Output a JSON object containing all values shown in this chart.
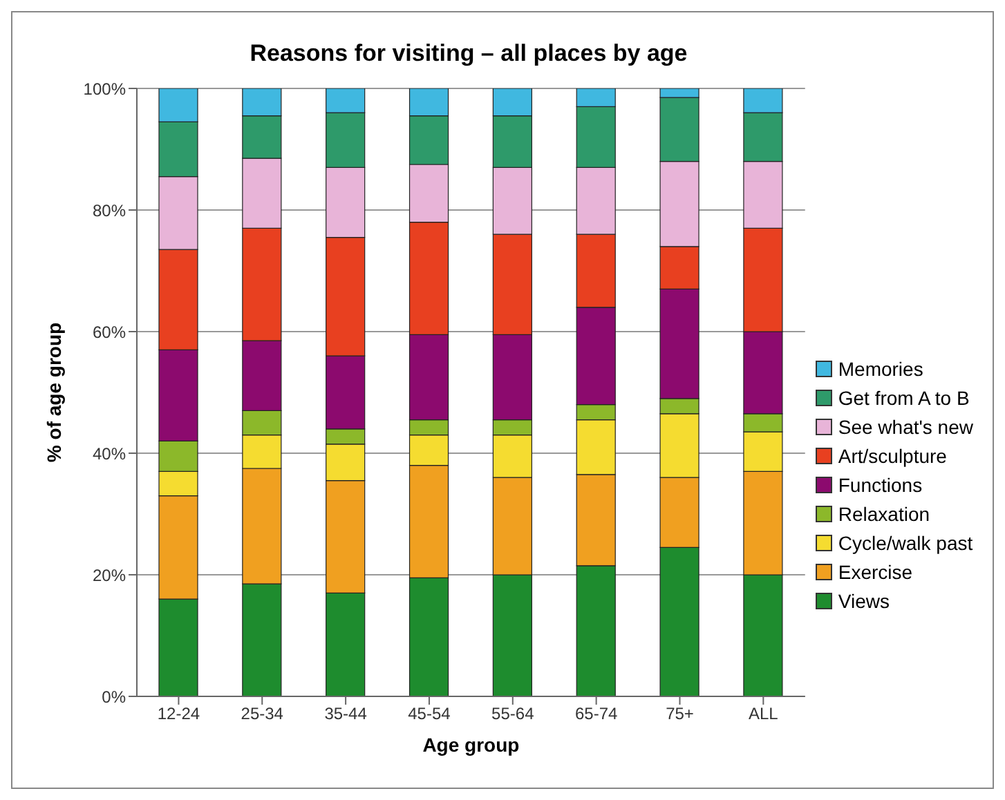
{
  "chart_data": {
    "type": "bar",
    "title": "Reasons for visiting – all places by age",
    "xlabel": "Age group",
    "ylabel": "% of age group",
    "categories": [
      "12-24",
      "25-34",
      "35-44",
      "45-54",
      "55-64",
      "65-74",
      "75+",
      "ALL"
    ],
    "stacked": true,
    "grid": "y",
    "legend": "right",
    "ylim": [
      0,
      100
    ],
    "yticks": [
      {
        "value": 0,
        "label": "0%"
      },
      {
        "value": 20,
        "label": "20%"
      },
      {
        "value": 40,
        "label": "40%"
      },
      {
        "value": 60,
        "label": "60%"
      },
      {
        "value": 80,
        "label": "80%"
      },
      {
        "value": 100,
        "label": "100%"
      }
    ],
    "series": [
      {
        "name": "Views",
        "color": "#1e8c2e",
        "values": [
          16,
          18.5,
          17,
          19.5,
          20,
          21.5,
          24.5,
          20
        ]
      },
      {
        "name": "Exercise",
        "color": "#f0a020",
        "values": [
          17,
          19,
          18.5,
          18.5,
          16,
          15,
          11.5,
          17
        ]
      },
      {
        "name": "Cycle/walk past",
        "color": "#f5dc30",
        "values": [
          4,
          5.5,
          6,
          5,
          7,
          9,
          10.5,
          6.5
        ]
      },
      {
        "name": "Relaxation",
        "color": "#8cb82a",
        "values": [
          5,
          4,
          2.5,
          2.5,
          2.5,
          2.5,
          2.5,
          3
        ]
      },
      {
        "name": "Functions",
        "color": "#8c0a6e",
        "values": [
          15,
          11.5,
          12,
          14,
          14,
          16,
          18,
          13.5
        ]
      },
      {
        "name": "Art/sculpture",
        "color": "#e84020",
        "values": [
          16.5,
          18.5,
          19.5,
          18.5,
          16.5,
          12,
          7,
          17
        ]
      },
      {
        "name": "See what's new",
        "color": "#e8b4d8",
        "values": [
          12,
          11.5,
          11.5,
          9.5,
          11,
          11,
          14,
          11
        ]
      },
      {
        "name": "Get from A to B",
        "color": "#2e9a6a",
        "values": [
          9,
          7,
          9,
          8,
          8.5,
          10,
          10.5,
          8
        ]
      },
      {
        "name": "Memories",
        "color": "#40b8e0",
        "values": [
          5.5,
          4.5,
          4,
          4.5,
          4.5,
          3,
          1.5,
          4
        ]
      }
    ]
  }
}
